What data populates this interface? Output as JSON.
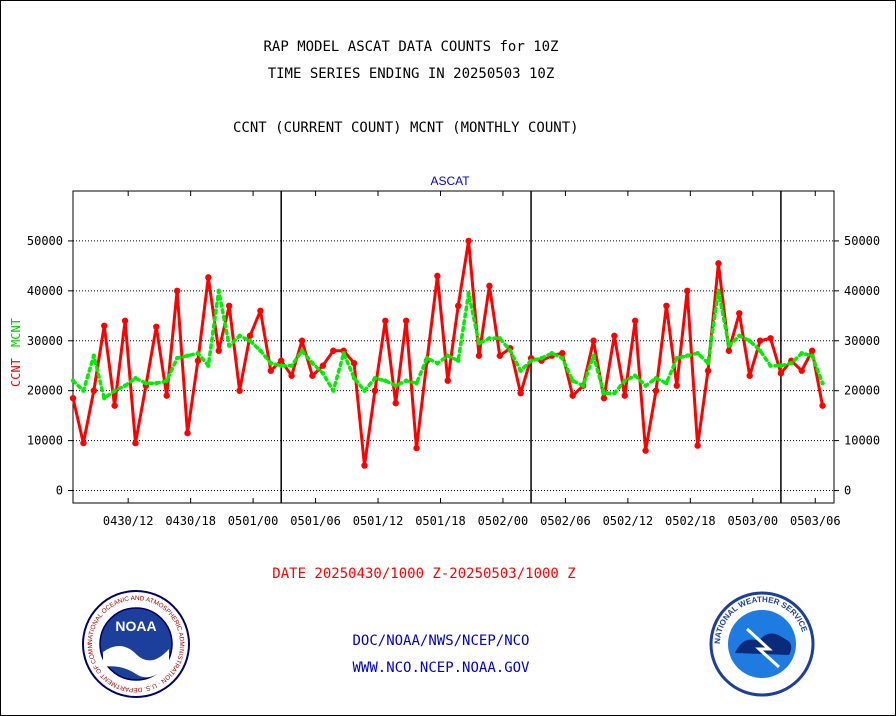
{
  "titles": {
    "line1": "RAP MODEL ASCAT DATA COUNTS for 10Z",
    "line2": "TIME SERIES ENDING IN 20250503 10Z",
    "line3": "CCNT (CURRENT COUNT) MCNT (MONTHLY COUNT)"
  },
  "footer": {
    "date_range": "DATE 20250430/1000 Z-20250503/1000 Z",
    "org": "DOC/NOAA/NWS/NCEP/NCO",
    "website": "WWW.NCO.NCEP.NOAA.GOV"
  },
  "logos": {
    "noaa_text": "NOAA",
    "noaa_ring": "NATIONAL OCEANIC AND ATMOSPHERIC ADMINISTRATION · U.S. DEPARTMENT OF COMMERCE",
    "nws_ring": "NATIONAL WEATHER SERVICE"
  },
  "colors": {
    "ccnt": "#ff0000",
    "mcnt": "#00ee00",
    "panel_label": "#0000cc",
    "axis": "#000000"
  },
  "chart_data": {
    "type": "line",
    "panel_title": "ASCAT",
    "ylabel_ccnt": "CCNT",
    "ylabel_mcnt": "MCNT",
    "ylim": [
      -2500,
      60000
    ],
    "yticks": [
      0,
      10000,
      20000,
      30000,
      40000,
      50000
    ],
    "ytick_labels": [
      "0",
      "10000",
      "20000",
      "30000",
      "40000",
      "50000"
    ],
    "xlim_hours": [
      -3.3,
      69.8
    ],
    "x_unit": "hours since 0430/10Z",
    "xticks": [
      {
        "h": 2,
        "label": "0430/12"
      },
      {
        "h": 8,
        "label": "0430/18"
      },
      {
        "h": 14,
        "label": "0501/00"
      },
      {
        "h": 20,
        "label": "0501/06"
      },
      {
        "h": 26,
        "label": "0501/12"
      },
      {
        "h": 32,
        "label": "0501/18"
      },
      {
        "h": 38,
        "label": "0502/00"
      },
      {
        "h": 44,
        "label": "0502/06"
      },
      {
        "h": 50,
        "label": "0502/12"
      },
      {
        "h": 56,
        "label": "0502/18"
      },
      {
        "h": 62,
        "label": "0503/00"
      },
      {
        "h": 68,
        "label": "0503/06"
      }
    ],
    "day_boundaries_hours": [
      16.7,
      40.7,
      64.7
    ],
    "grid": "dotted horizontal",
    "series": [
      {
        "name": "CCNT",
        "color": "#ff0000",
        "values": [
          [
            -3.3,
            18500
          ],
          [
            -2.3,
            9500
          ],
          [
            -1.3,
            20000
          ],
          [
            -0.3,
            33000
          ],
          [
            0.7,
            17000
          ],
          [
            1.7,
            34000
          ],
          [
            2.7,
            9500
          ],
          [
            3.7,
            21000
          ],
          [
            4.7,
            32800
          ],
          [
            5.7,
            19000
          ],
          [
            6.7,
            40000
          ],
          [
            7.7,
            11500
          ],
          [
            8.7,
            26000
          ],
          [
            9.7,
            42700
          ],
          [
            10.7,
            28000
          ],
          [
            11.7,
            37000
          ],
          [
            12.7,
            20000
          ],
          [
            13.7,
            31000
          ],
          [
            14.7,
            36000
          ],
          [
            15.7,
            24000
          ],
          [
            16.7,
            26000
          ],
          [
            17.7,
            23000
          ],
          [
            18.7,
            30000
          ],
          [
            19.7,
            23000
          ],
          [
            20.7,
            25000
          ],
          [
            21.7,
            28000
          ],
          [
            22.7,
            28000
          ],
          [
            23.7,
            25500
          ],
          [
            24.7,
            5000
          ],
          [
            25.7,
            20000
          ],
          [
            26.7,
            34000
          ],
          [
            27.7,
            17500
          ],
          [
            28.7,
            34000
          ],
          [
            29.7,
            8500
          ],
          [
            30.7,
            26000
          ],
          [
            31.7,
            43000
          ],
          [
            32.7,
            22000
          ],
          [
            33.7,
            37000
          ],
          [
            34.7,
            50000
          ],
          [
            35.7,
            27000
          ],
          [
            36.7,
            41000
          ],
          [
            37.7,
            27000
          ],
          [
            38.7,
            28500
          ],
          [
            39.7,
            19500
          ],
          [
            40.7,
            26500
          ],
          [
            41.7,
            26000
          ],
          [
            42.7,
            27000
          ],
          [
            43.7,
            27500
          ],
          [
            44.7,
            19000
          ],
          [
            45.7,
            21000
          ],
          [
            46.7,
            30000
          ],
          [
            47.7,
            18500
          ],
          [
            48.7,
            31000
          ],
          [
            49.7,
            19000
          ],
          [
            50.7,
            34000
          ],
          [
            51.7,
            8000
          ],
          [
            52.7,
            20000
          ],
          [
            53.7,
            37000
          ],
          [
            54.7,
            21000
          ],
          [
            55.7,
            40000
          ],
          [
            56.7,
            9000
          ],
          [
            57.7,
            24000
          ],
          [
            58.7,
            45500
          ],
          [
            59.7,
            28000
          ],
          [
            60.7,
            35500
          ],
          [
            61.7,
            23000
          ],
          [
            62.7,
            30000
          ],
          [
            63.7,
            30500
          ],
          [
            64.7,
            23500
          ],
          [
            65.7,
            26000
          ],
          [
            66.7,
            24000
          ],
          [
            67.7,
            28000
          ],
          [
            68.7,
            17000
          ]
        ]
      },
      {
        "name": "MCNT",
        "color": "#00ee00",
        "values": [
          [
            -3.3,
            22000
          ],
          [
            -2.3,
            20000
          ],
          [
            -1.3,
            27000
          ],
          [
            -0.3,
            18500
          ],
          [
            0.7,
            20000
          ],
          [
            1.7,
            21000
          ],
          [
            2.7,
            22500
          ],
          [
            3.7,
            21500
          ],
          [
            4.7,
            21500
          ],
          [
            5.7,
            22000
          ],
          [
            6.7,
            26500
          ],
          [
            7.7,
            27000
          ],
          [
            8.7,
            27500
          ],
          [
            9.7,
            25000
          ],
          [
            10.7,
            40000
          ],
          [
            11.7,
            29000
          ],
          [
            12.7,
            31000
          ],
          [
            13.7,
            30000
          ],
          [
            14.7,
            28000
          ],
          [
            15.7,
            25500
          ],
          [
            16.7,
            25000
          ],
          [
            17.7,
            25000
          ],
          [
            18.7,
            28000
          ],
          [
            19.7,
            25500
          ],
          [
            20.7,
            23500
          ],
          [
            21.7,
            20000
          ],
          [
            22.7,
            27500
          ],
          [
            23.7,
            22500
          ],
          [
            24.7,
            20000
          ],
          [
            25.7,
            22500
          ],
          [
            26.7,
            22000
          ],
          [
            27.7,
            21000
          ],
          [
            28.7,
            22000
          ],
          [
            29.7,
            21500
          ],
          [
            30.7,
            26500
          ],
          [
            31.7,
            25500
          ],
          [
            32.7,
            27000
          ],
          [
            33.7,
            26000
          ],
          [
            34.7,
            39500
          ],
          [
            35.7,
            29500
          ],
          [
            36.7,
            30500
          ],
          [
            37.7,
            30500
          ],
          [
            38.7,
            28000
          ],
          [
            39.7,
            24000
          ],
          [
            40.7,
            26000
          ],
          [
            41.7,
            26500
          ],
          [
            42.7,
            27500
          ],
          [
            43.7,
            26500
          ],
          [
            44.7,
            22000
          ],
          [
            45.7,
            21000
          ],
          [
            46.7,
            27000
          ],
          [
            47.7,
            19500
          ],
          [
            48.7,
            19500
          ],
          [
            49.7,
            22000
          ],
          [
            50.7,
            23000
          ],
          [
            51.7,
            21000
          ],
          [
            52.7,
            22500
          ],
          [
            53.7,
            21500
          ],
          [
            54.7,
            26500
          ],
          [
            55.7,
            27000
          ],
          [
            56.7,
            27500
          ],
          [
            57.7,
            25500
          ],
          [
            58.7,
            40000
          ],
          [
            59.7,
            29000
          ],
          [
            60.7,
            31000
          ],
          [
            61.7,
            30000
          ],
          [
            62.7,
            28000
          ],
          [
            63.7,
            25000
          ],
          [
            64.7,
            25000
          ],
          [
            65.7,
            25500
          ],
          [
            66.7,
            27500
          ],
          [
            67.7,
            27000
          ],
          [
            68.7,
            21500
          ]
        ]
      }
    ]
  }
}
